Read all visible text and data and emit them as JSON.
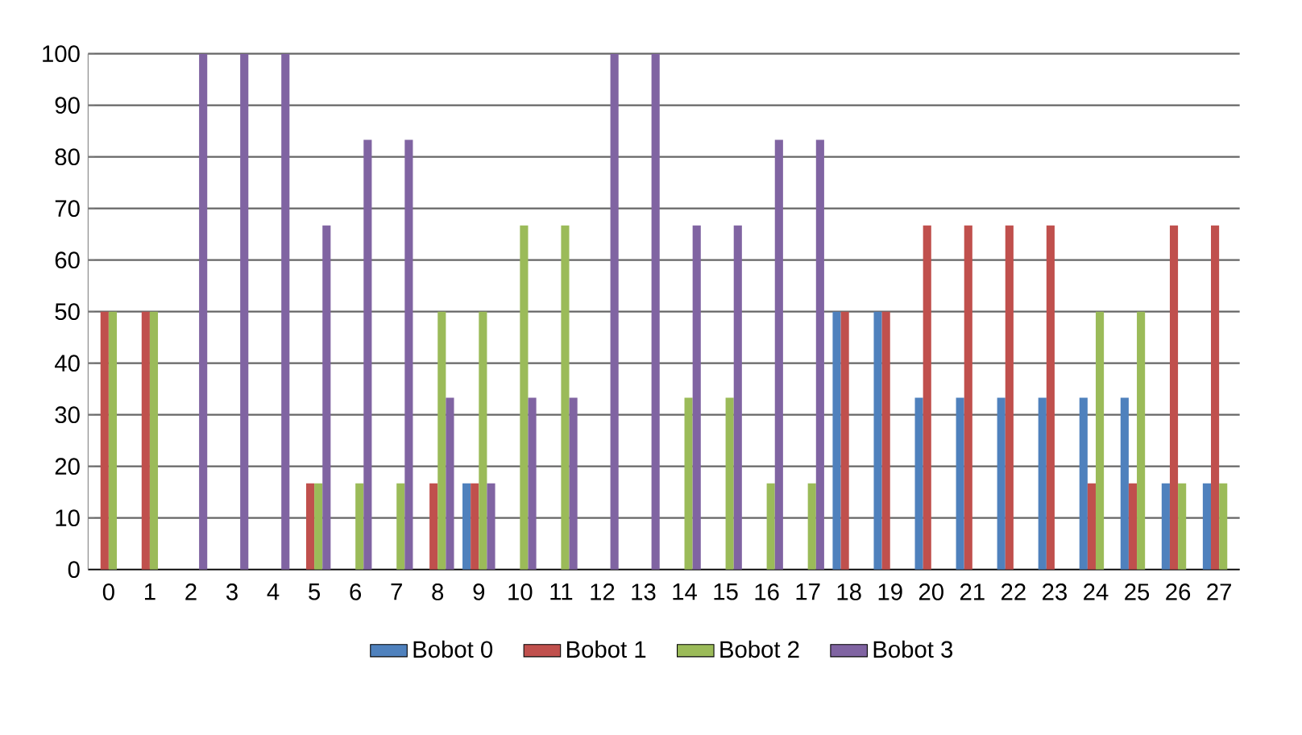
{
  "chart_data": {
    "type": "bar",
    "categories": [
      "0",
      "1",
      "2",
      "3",
      "4",
      "5",
      "6",
      "7",
      "8",
      "9",
      "10",
      "11",
      "12",
      "13",
      "14",
      "15",
      "16",
      "17",
      "18",
      "19",
      "20",
      "21",
      "22",
      "23",
      "24",
      "25",
      "26",
      "27"
    ],
    "series": [
      {
        "name": "Bobot 0",
        "color": "#4f81bd",
        "values": [
          0,
          0,
          0,
          0,
          0,
          0,
          0,
          0,
          0,
          16.7,
          0,
          0,
          0,
          0,
          0,
          0,
          0,
          0,
          50,
          50,
          33.3,
          33.3,
          33.3,
          33.3,
          33.3,
          33.3,
          16.7,
          16.7
        ]
      },
      {
        "name": "Bobot 1",
        "color": "#c0504d",
        "values": [
          50,
          50,
          0,
          0,
          0,
          16.7,
          0,
          0,
          16.7,
          16.7,
          0,
          0,
          0,
          0,
          0,
          0,
          0,
          0,
          50,
          50,
          66.7,
          66.7,
          66.7,
          66.7,
          16.7,
          16.7,
          66.7,
          66.7
        ]
      },
      {
        "name": "Bobot 2",
        "color": "#9bbb59",
        "values": [
          50,
          50,
          0,
          0,
          0,
          16.7,
          16.7,
          16.7,
          50,
          50,
          66.7,
          66.7,
          0,
          0,
          33.3,
          33.3,
          16.7,
          16.7,
          0,
          0,
          0,
          0,
          0,
          0,
          50,
          50,
          16.7,
          16.7
        ]
      },
      {
        "name": "Bobot 3",
        "color": "#8064a2",
        "values": [
          0,
          0,
          100,
          100,
          100,
          66.7,
          83.3,
          83.3,
          33.3,
          16.7,
          33.3,
          33.3,
          100,
          100,
          66.7,
          66.7,
          83.3,
          83.3,
          0,
          0,
          0,
          0,
          0,
          0,
          0,
          0,
          0,
          0
        ]
      }
    ],
    "ylim": [
      0,
      100
    ],
    "yticks": [
      0,
      10,
      20,
      30,
      40,
      50,
      60,
      70,
      80,
      90,
      100
    ],
    "grid": "y",
    "legend": "bottom"
  }
}
